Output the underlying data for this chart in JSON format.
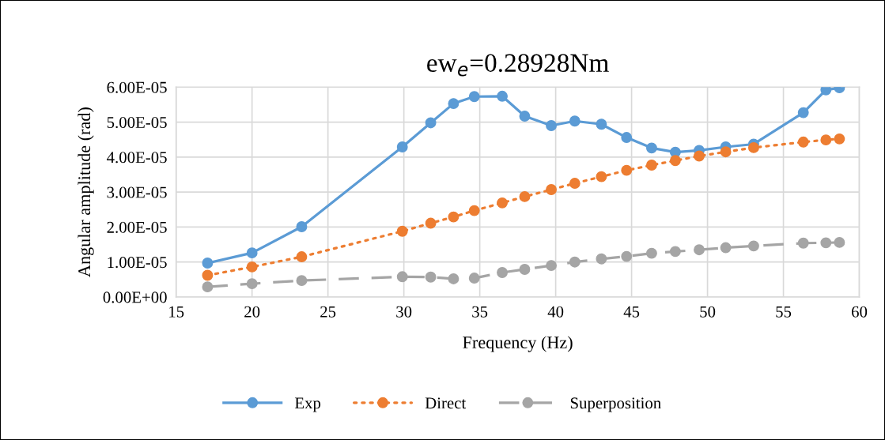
{
  "chart_data": {
    "type": "line",
    "title": "ew$_{e}$=0.28928Nm",
    "xlabel": "Frequency (Hz)",
    "ylabel": "Angular amplitude (rad)",
    "x": [
      17.07,
      20.0,
      23.27,
      29.9,
      31.77,
      33.27,
      34.64,
      36.48,
      37.96,
      39.71,
      41.26,
      43.01,
      44.67,
      46.32,
      47.88,
      49.45,
      51.2,
      53.04,
      56.31,
      57.8,
      58.69
    ],
    "series": [
      {
        "name": "Exp",
        "color": "#5b9bd5",
        "line_style": "solid",
        "values": [
          9.7e-06,
          1.26e-05,
          2.01e-05,
          4.29e-05,
          4.98e-05,
          5.53e-05,
          5.73e-05,
          5.74e-05,
          5.17e-05,
          4.9e-05,
          5.03e-05,
          4.94e-05,
          4.56e-05,
          4.26e-05,
          4.14e-05,
          4.19e-05,
          4.29e-05,
          4.37e-05,
          5.27e-05,
          5.92e-05,
          5.98e-05
        ]
      },
      {
        "name": "Direct",
        "color": "#ed7d31",
        "line_style": "dotted",
        "values": [
          6.2e-06,
          8.6e-06,
          1.15e-05,
          1.88e-05,
          2.11e-05,
          2.29e-05,
          2.47e-05,
          2.69e-05,
          2.87e-05,
          3.07e-05,
          3.25e-05,
          3.44e-05,
          3.62e-05,
          3.77e-05,
          3.9e-05,
          4.03e-05,
          4.15e-05,
          4.27e-05,
          4.43e-05,
          4.49e-05,
          4.52e-05
        ]
      },
      {
        "name": "Superposition",
        "color": "#a5a5a5",
        "line_style": "dashed",
        "values": [
          2.9e-06,
          3.8e-06,
          4.7e-06,
          5.8e-06,
          5.7e-06,
          5.2e-06,
          5.4e-06,
          7e-06,
          7.9e-06,
          9e-06,
          1e-05,
          1.09e-05,
          1.16e-05,
          1.25e-05,
          1.3e-05,
          1.35e-05,
          1.41e-05,
          1.46e-05,
          1.54e-05,
          1.55e-05,
          1.56e-05
        ]
      }
    ],
    "xlim": [
      15,
      60
    ],
    "xticks": [
      15,
      20,
      25,
      30,
      35,
      40,
      45,
      50,
      55,
      60
    ],
    "ylim": [
      0,
      6e-05
    ],
    "yticks": [
      {
        "value": 0,
        "label": "0.00E+00"
      },
      {
        "value": 1e-05,
        "label": "1.00E-05"
      },
      {
        "value": 2e-05,
        "label": "2.00E-05"
      },
      {
        "value": 3e-05,
        "label": "3.00E-05"
      },
      {
        "value": 4e-05,
        "label": "4.00E-05"
      },
      {
        "value": 5e-05,
        "label": "5.00E-05"
      },
      {
        "value": 6e-05,
        "label": "6.00E-05"
      }
    ],
    "grid": true,
    "legend": "bottom",
    "marker": "circle"
  }
}
